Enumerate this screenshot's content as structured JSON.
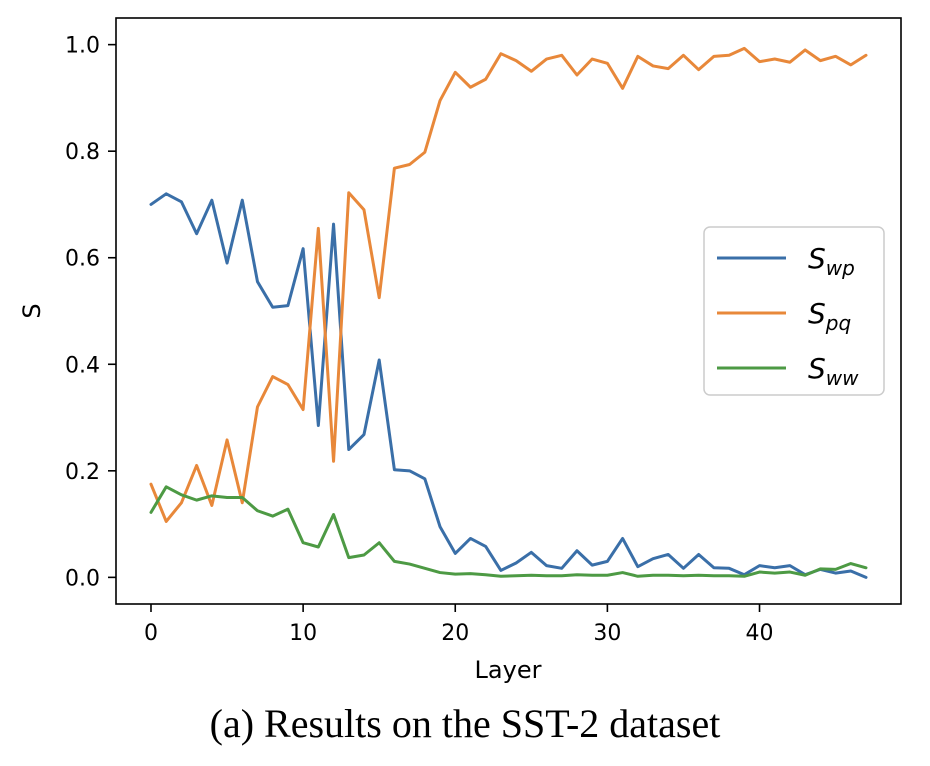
{
  "caption": "(a) Results on the SST-2 dataset",
  "chart_data": {
    "type": "line",
    "xlabel": "Layer",
    "ylabel": "S",
    "xlim": [
      -2.3,
      49.3
    ],
    "ylim": [
      -0.05,
      1.05
    ],
    "xticks": [
      0,
      10,
      20,
      30,
      40
    ],
    "yticks": [
      0.0,
      0.2,
      0.4,
      0.6,
      0.8,
      1.0
    ],
    "grid": false,
    "legend_position": "center-right",
    "x": [
      0,
      1,
      2,
      3,
      4,
      5,
      6,
      7,
      8,
      9,
      10,
      11,
      12,
      13,
      14,
      15,
      16,
      17,
      18,
      19,
      20,
      21,
      22,
      23,
      24,
      25,
      26,
      27,
      28,
      29,
      30,
      31,
      32,
      33,
      34,
      35,
      36,
      37,
      38,
      39,
      40,
      41,
      42,
      43,
      44,
      45,
      46,
      47
    ],
    "series": [
      {
        "name": "S",
        "sub": "wp",
        "color": "#3a6fa8",
        "values": [
          0.7,
          0.72,
          0.705,
          0.645,
          0.708,
          0.59,
          0.708,
          0.555,
          0.507,
          0.51,
          0.617,
          0.285,
          0.663,
          0.24,
          0.268,
          0.408,
          0.202,
          0.2,
          0.185,
          0.095,
          0.045,
          0.073,
          0.058,
          0.013,
          0.027,
          0.047,
          0.022,
          0.017,
          0.05,
          0.023,
          0.03,
          0.073,
          0.02,
          0.035,
          0.043,
          0.017,
          0.043,
          0.018,
          0.017,
          0.005,
          0.022,
          0.018,
          0.022,
          0.005,
          0.015,
          0.008,
          0.012,
          0.0
        ]
      },
      {
        "name": "S",
        "sub": "pq",
        "color": "#e8883a",
        "values": [
          0.175,
          0.105,
          0.14,
          0.21,
          0.135,
          0.258,
          0.14,
          0.32,
          0.377,
          0.362,
          0.315,
          0.655,
          0.218,
          0.722,
          0.69,
          0.525,
          0.768,
          0.775,
          0.798,
          0.895,
          0.948,
          0.92,
          0.935,
          0.983,
          0.97,
          0.95,
          0.973,
          0.98,
          0.943,
          0.973,
          0.965,
          0.918,
          0.978,
          0.96,
          0.955,
          0.98,
          0.953,
          0.978,
          0.98,
          0.993,
          0.968,
          0.973,
          0.967,
          0.99,
          0.97,
          0.978,
          0.962,
          0.98
        ]
      },
      {
        "name": "S",
        "sub": "ww",
        "color": "#4d9a44",
        "values": [
          0.122,
          0.17,
          0.155,
          0.145,
          0.153,
          0.15,
          0.15,
          0.125,
          0.115,
          0.128,
          0.065,
          0.057,
          0.118,
          0.037,
          0.042,
          0.065,
          0.03,
          0.025,
          0.017,
          0.009,
          0.006,
          0.007,
          0.005,
          0.002,
          0.003,
          0.004,
          0.003,
          0.003,
          0.005,
          0.004,
          0.004,
          0.009,
          0.002,
          0.004,
          0.004,
          0.003,
          0.004,
          0.003,
          0.003,
          0.002,
          0.01,
          0.008,
          0.01,
          0.004,
          0.016,
          0.015,
          0.026,
          0.018
        ]
      }
    ]
  }
}
